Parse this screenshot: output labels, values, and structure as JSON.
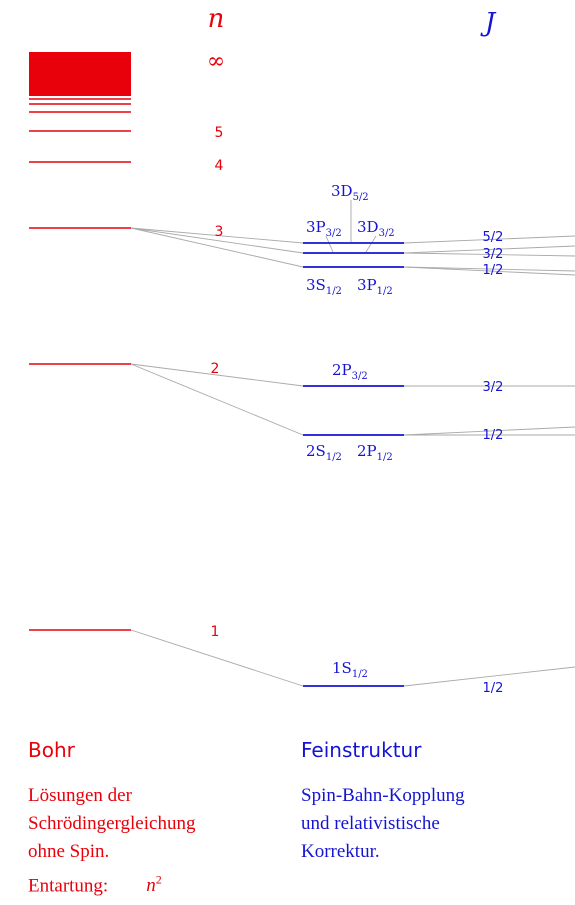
{
  "colors": {
    "bohr": "#e8000b",
    "fine": "#1414d2",
    "connector": "#aaaaaa"
  },
  "headers": {
    "n_symbol": "n",
    "j_symbol": "J",
    "infinity": "∞"
  },
  "bohr_levels": [
    {
      "n": "5"
    },
    {
      "n": "4"
    },
    {
      "n": "3"
    },
    {
      "n": "2"
    },
    {
      "n": "1"
    }
  ],
  "fine_structure": {
    "n3": {
      "upper_label": {
        "base": "3D",
        "sub": "5/2"
      },
      "mid_left": {
        "base": "3P",
        "sub": "3/2"
      },
      "mid_right": {
        "base": "3D",
        "sub": "3/2"
      },
      "lower_left": {
        "base": "3S",
        "sub": "1/2"
      },
      "lower_right": {
        "base": "3P",
        "sub": "1/2"
      },
      "j_values": [
        "5/2",
        "3/2",
        "1/2"
      ]
    },
    "n2": {
      "upper_label": {
        "base": "2P",
        "sub": "3/2"
      },
      "lower_left": {
        "base": "2S",
        "sub": "1/2"
      },
      "lower_right": {
        "base": "2P",
        "sub": "1/2"
      },
      "j_values": [
        "3/2",
        "1/2"
      ]
    },
    "n1": {
      "label": {
        "base": "1S",
        "sub": "1/2"
      },
      "j_values": [
        "1/2"
      ]
    }
  },
  "bohr_section": {
    "title": "Bohr",
    "lines": [
      "Lösungen der",
      "Schrödingergleichung",
      "ohne Spin.",
      "Entartung:"
    ],
    "degeneracy": {
      "base": "n",
      "sup": "2"
    }
  },
  "fine_section": {
    "title": "Feinstruktur",
    "lines": [
      "Spin-Bahn-Kopplung",
      "und relativistische",
      "Korrektur."
    ]
  }
}
